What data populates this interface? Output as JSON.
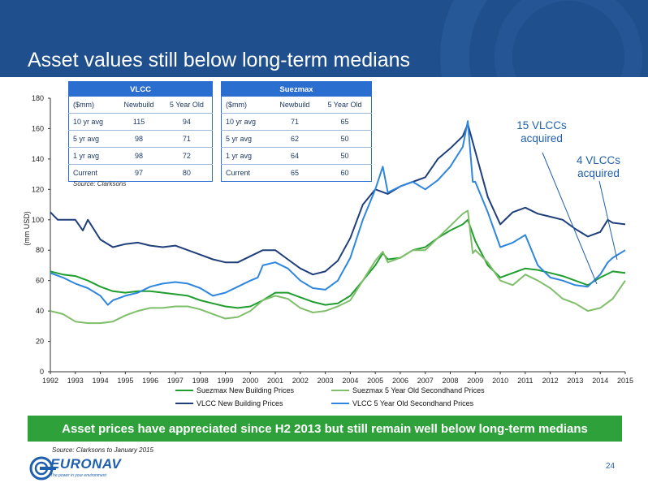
{
  "slide": {
    "title": "Asset values still below long-term medians",
    "page_number": "24"
  },
  "tables": {
    "source": "Source: Clarksons",
    "vlcc": {
      "title": "VLCC",
      "headers": [
        "($mm)",
        "Newbuild",
        "5 Year Old"
      ],
      "rows": [
        [
          "10 yr avg",
          "115",
          "94"
        ],
        [
          "5 yr avg",
          "98",
          "71"
        ],
        [
          "1 yr avg",
          "98",
          "72"
        ],
        [
          "Current",
          "97",
          "80"
        ]
      ]
    },
    "suezmax": {
      "title": "Suezmax",
      "headers": [
        "($mm)",
        "Newbuild",
        "5 Year Old"
      ],
      "rows": [
        [
          "10 yr avg",
          "71",
          "65"
        ],
        [
          "5 yr avg",
          "62",
          "50"
        ],
        [
          "1 yr avg",
          "64",
          "50"
        ],
        [
          "Current",
          "65",
          "60"
        ]
      ]
    }
  },
  "annotations": {
    "vlcc_15": "15 VLCCs acquired",
    "vlcc_4": "4 VLCCs acquired"
  },
  "banner": "Asset prices have appreciated since H2 2013 but still remain well below long-term medians",
  "footer_source": "Source: Clarksons to January 2015",
  "logo": {
    "name": "EURONAV",
    "tagline": "The power in your environment"
  },
  "colors": {
    "header": "#1f4f8c",
    "banner": "#2ea13a",
    "suez_nb": "#1f9e2e",
    "suez_5": "#7fbe6a",
    "vlcc_nb": "#1f3f7a",
    "vlcc_5": "#2e86de"
  },
  "chart_data": {
    "type": "line",
    "title": "",
    "xlabel": "",
    "ylabel": "(mm USD)",
    "ylim": [
      0,
      180
    ],
    "xlim": [
      1992,
      2015
    ],
    "yticks": [
      0,
      20,
      40,
      60,
      80,
      100,
      120,
      140,
      160,
      180
    ],
    "xticks": [
      "1992",
      "1993",
      "1994",
      "1995",
      "1996",
      "1997",
      "1998",
      "1999",
      "2000",
      "2001",
      "2002",
      "2003",
      "2004",
      "2005",
      "2006",
      "2007",
      "2008",
      "2009",
      "2010",
      "2011",
      "2012",
      "2013",
      "2014",
      "2015"
    ],
    "legend_position": "bottom",
    "series": [
      {
        "name": "Suezmax New Building Prices",
        "color": "#1f9e2e",
        "x": [
          1992,
          1992.5,
          1993,
          1993.5,
          1994,
          1994.5,
          1995,
          1995.5,
          1996,
          1996.5,
          1997,
          1997.5,
          1998,
          1998.5,
          1999,
          1999.5,
          2000,
          2000.5,
          2001,
          2001.5,
          2002,
          2002.5,
          2003,
          2003.5,
          2004,
          2004.5,
          2005,
          2005.3,
          2005.5,
          2006,
          2006.5,
          2007,
          2007.5,
          2008,
          2008.5,
          2008.7,
          2009,
          2009.5,
          2010,
          2010.5,
          2011,
          2011.5,
          2012,
          2012.5,
          2013,
          2013.5,
          2014,
          2014.5,
          2015
        ],
        "values": [
          66,
          64,
          63,
          60,
          56,
          53,
          52,
          53,
          53,
          52,
          51,
          50,
          47,
          45,
          43,
          42,
          43,
          47,
          52,
          52,
          49,
          46,
          44,
          45,
          50,
          60,
          70,
          78,
          74,
          75,
          80,
          82,
          88,
          93,
          97,
          100,
          86,
          70,
          62,
          65,
          68,
          67,
          65,
          63,
          60,
          57,
          62,
          66,
          65
        ]
      },
      {
        "name": "Suezmax 5 Year Old Secondhand Prices",
        "color": "#7fbe6a",
        "x": [
          1992,
          1992.5,
          1993,
          1993.5,
          1994,
          1994.5,
          1995,
          1995.5,
          1996,
          1996.5,
          1997,
          1997.5,
          1998,
          1998.5,
          1999,
          1999.5,
          2000,
          2000.5,
          2001,
          2001.5,
          2002,
          2002.5,
          2003,
          2003.5,
          2004,
          2004.5,
          2005,
          2005.3,
          2005.5,
          2006,
          2006.5,
          2007,
          2007.5,
          2008,
          2008.5,
          2008.7,
          2008.9,
          2009,
          2009.5,
          2010,
          2010.5,
          2011,
          2011.5,
          2012,
          2012.5,
          2013,
          2013.5,
          2014,
          2014.5,
          2015
        ],
        "values": [
          40,
          38,
          33,
          32,
          32,
          33,
          37,
          40,
          42,
          42,
          43,
          43,
          41,
          38,
          35,
          36,
          40,
          47,
          50,
          48,
          42,
          39,
          40,
          43,
          47,
          60,
          73,
          79,
          72,
          75,
          80,
          80,
          88,
          96,
          104,
          106,
          78,
          80,
          72,
          60,
          57,
          64,
          60,
          55,
          48,
          45,
          40,
          42,
          48,
          60
        ]
      },
      {
        "name": "VLCC New Building Prices",
        "color": "#1f3f7a",
        "x": [
          1992,
          1992.3,
          1993,
          1993.3,
          1993.5,
          1994,
          1994.5,
          1995,
          1995.5,
          1996,
          1996.5,
          1997,
          1997.5,
          1998,
          1998.5,
          1999,
          1999.5,
          2000,
          2000.5,
          2001,
          2001.5,
          2002,
          2002.5,
          2003,
          2003.5,
          2004,
          2004.5,
          2005,
          2005.5,
          2006,
          2006.5,
          2007,
          2007.5,
          2008,
          2008.5,
          2008.7,
          2009,
          2009.5,
          2010,
          2010.5,
          2011,
          2011.5,
          2012,
          2012.5,
          2013,
          2013.5,
          2014,
          2014.3,
          2014.5,
          2015
        ],
        "values": [
          105,
          100,
          100,
          93,
          100,
          87,
          82,
          84,
          85,
          83,
          82,
          83,
          80,
          77,
          74,
          72,
          72,
          76,
          80,
          80,
          74,
          68,
          64,
          66,
          73,
          88,
          110,
          120,
          117,
          122,
          125,
          128,
          140,
          147,
          155,
          163,
          145,
          115,
          97,
          105,
          108,
          104,
          102,
          100,
          94,
          89,
          92,
          100,
          98,
          97
        ]
      },
      {
        "name": "VLCC 5 Year Old Secondhand Prices",
        "color": "#2e86de",
        "x": [
          1992,
          1992.5,
          1993,
          1993.5,
          1994,
          1994.3,
          1994.5,
          1995,
          1995.5,
          1996,
          1996.5,
          1997,
          1997.5,
          1998,
          1998.5,
          1999,
          1999.5,
          2000,
          2000.3,
          2000.5,
          2001,
          2001.5,
          2002,
          2002.5,
          2003,
          2003.5,
          2004,
          2004.5,
          2005,
          2005.3,
          2005.5,
          2006,
          2006.5,
          2007,
          2007.5,
          2008,
          2008.5,
          2008.7,
          2008.9,
          2009,
          2009.5,
          2010,
          2010.5,
          2011,
          2011.5,
          2012,
          2012.5,
          2013,
          2013.5,
          2014,
          2014.3,
          2014.5,
          2015
        ],
        "values": [
          65,
          62,
          58,
          55,
          50,
          44,
          47,
          50,
          52,
          56,
          58,
          59,
          58,
          55,
          50,
          52,
          56,
          60,
          62,
          70,
          72,
          68,
          60,
          55,
          54,
          60,
          75,
          100,
          120,
          135,
          118,
          122,
          125,
          120,
          126,
          135,
          148,
          165,
          125,
          125,
          105,
          82,
          85,
          90,
          70,
          62,
          60,
          57,
          56,
          64,
          72,
          75,
          80
        ]
      }
    ]
  }
}
